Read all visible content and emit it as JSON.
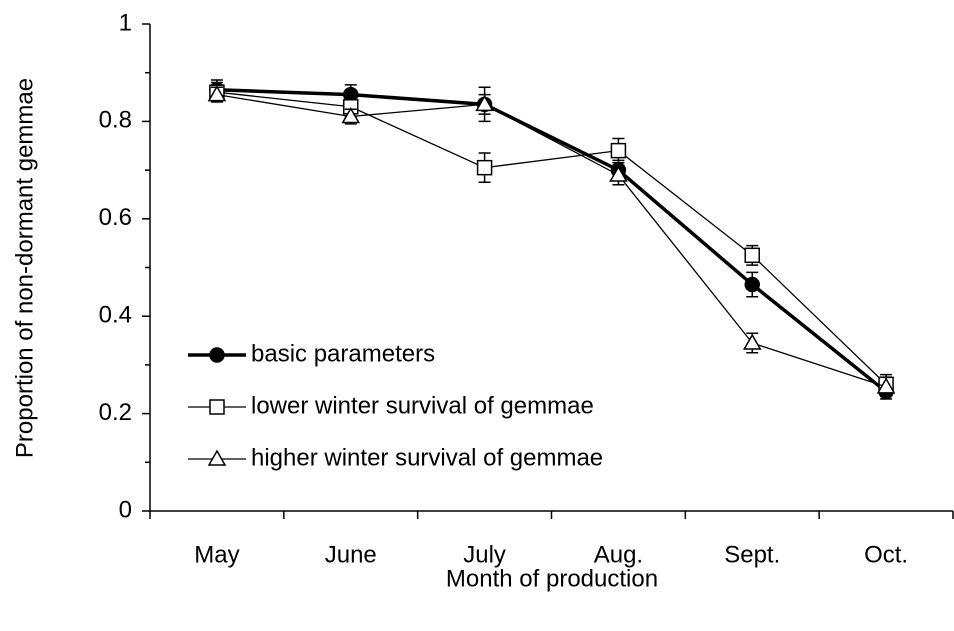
{
  "chart_data": {
    "type": "line",
    "x_label": "Month of production",
    "y_label": "Proportion of non-dormant gemmae",
    "categories": [
      "May",
      "June",
      "July",
      "Aug.",
      "Sept.",
      "Oct."
    ],
    "series": [
      {
        "name": "basic parameters",
        "color": "#000000",
        "marker": "circle",
        "filled": true,
        "line_width": 3.5,
        "values": [
          0.865,
          0.855,
          0.835,
          0.7,
          0.465,
          0.245
        ],
        "errors": [
          0.02,
          0.02,
          0.035,
          0.02,
          0.025,
          0.015
        ]
      },
      {
        "name": "lower winter survival of gemmae",
        "color": "#000000",
        "marker": "square",
        "filled": false,
        "line_width": 1.3,
        "values": [
          0.86,
          0.83,
          0.705,
          0.74,
          0.525,
          0.26
        ],
        "errors": [
          0.02,
          0.02,
          0.03,
          0.025,
          0.02,
          0.02
        ]
      },
      {
        "name": "higher winter survival of gemmae",
        "color": "#000000",
        "marker": "triangle",
        "filled": false,
        "line_width": 1.3,
        "values": [
          0.855,
          0.81,
          0.835,
          0.69,
          0.345,
          0.255
        ],
        "errors": [
          0.015,
          0.015,
          0.02,
          0.02,
          0.02,
          0.02
        ]
      }
    ],
    "ylim": [
      0,
      1
    ],
    "yticks": [
      0,
      0.2,
      0.4,
      0.6,
      0.8,
      1
    ],
    "yminorticks": [
      0.1,
      0.3,
      0.5,
      0.7,
      0.9
    ],
    "grid": false,
    "legend": "lower-left"
  }
}
